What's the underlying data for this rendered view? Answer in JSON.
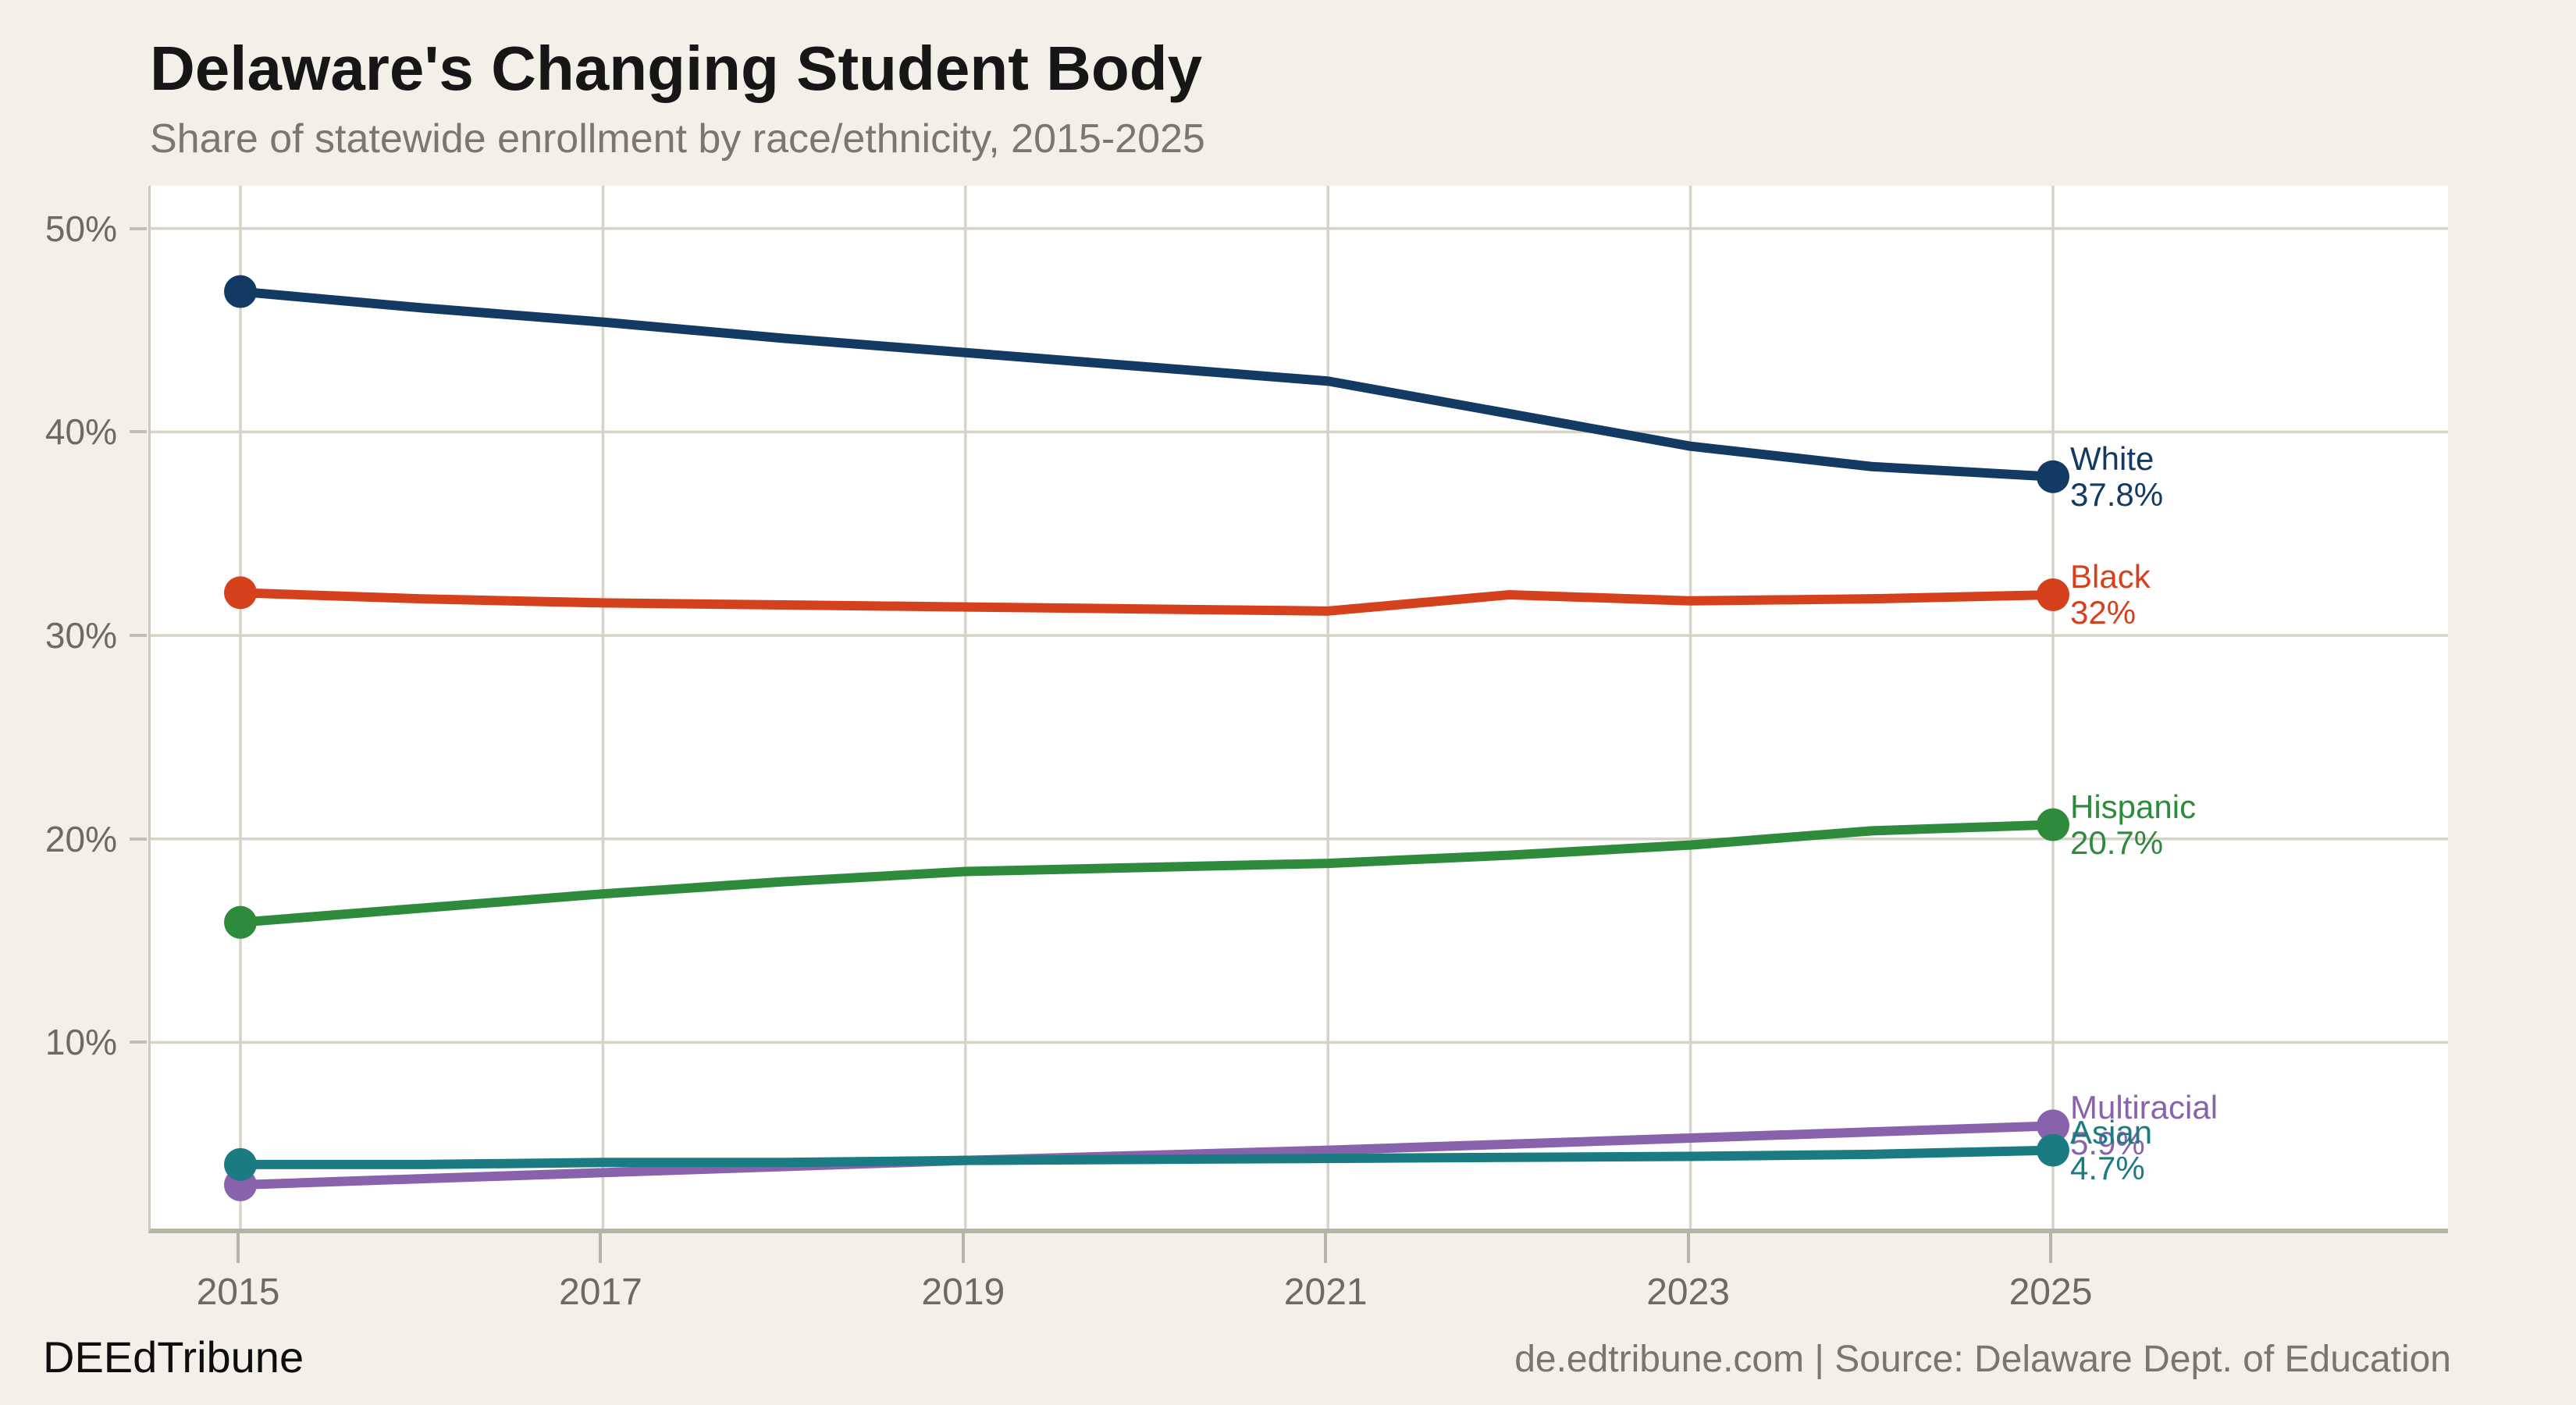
{
  "header": {
    "title": "Delaware's Changing Student Body",
    "subtitle": "Share of statewide enrollment by race/ethnicity, 2015-2025"
  },
  "footer": {
    "brand": "DEEdTribune",
    "source": "de.edtribune.com | Source: Delaware Dept. of Education"
  },
  "colors": {
    "background": "#f3f0e9",
    "plot_background": "#ffffff",
    "gridline": "#d8d2c7",
    "axis_line": "#b9b2a6",
    "tick_text": "#6f6a60"
  },
  "chart_data": {
    "type": "line",
    "title": "Delaware's Changing Student Body",
    "subtitle": "Share of statewide enrollment by race/ethnicity, 2015-2025",
    "xlabel": "",
    "ylabel": "",
    "grid": true,
    "legend_position": "end-of-line labels",
    "x": [
      2015,
      2016,
      2017,
      2018,
      2019,
      2020,
      2021,
      2022,
      2023,
      2024,
      2025
    ],
    "x_ticks": [
      {
        "v": 2015,
        "label": "2015"
      },
      {
        "v": 2017,
        "label": "2017"
      },
      {
        "v": 2019,
        "label": "2019"
      },
      {
        "v": 2021,
        "label": "2021"
      },
      {
        "v": 2023,
        "label": "2023"
      },
      {
        "v": 2025,
        "label": "2025"
      }
    ],
    "y_ticks": [
      {
        "v": 10,
        "label": "10%"
      },
      {
        "v": 20,
        "label": "20%"
      },
      {
        "v": 30,
        "label": "30%"
      },
      {
        "v": 40,
        "label": "40%"
      },
      {
        "v": 50,
        "label": "50%"
      }
    ],
    "xlim": [
      2014.5,
      2027.2
    ],
    "ylim": [
      0.85,
      52.1
    ],
    "series": [
      {
        "name": "White",
        "color": "#123a63",
        "end_label": "37.8%",
        "values": [
          46.9,
          46.1,
          45.4,
          44.6,
          43.9,
          43.2,
          42.5,
          40.9,
          39.3,
          38.3,
          37.8
        ]
      },
      {
        "name": "Black",
        "color": "#d5411d",
        "end_label": "32%",
        "values": [
          32.1,
          31.8,
          31.6,
          31.5,
          31.4,
          31.3,
          31.2,
          32.0,
          31.7,
          31.8,
          32.0
        ]
      },
      {
        "name": "Hispanic",
        "color": "#2e8b3b",
        "end_label": "20.7%",
        "values": [
          15.9,
          16.6,
          17.3,
          17.9,
          18.4,
          18.6,
          18.8,
          19.2,
          19.7,
          20.4,
          20.7
        ]
      },
      {
        "name": "Multiracial",
        "color": "#8862aa",
        "end_label": "5.9%",
        "values": [
          3.0,
          3.3,
          3.6,
          3.9,
          4.2,
          4.45,
          4.7,
          5.0,
          5.3,
          5.6,
          5.9
        ]
      },
      {
        "name": "Asian",
        "color": "#1b7b82",
        "end_label": "4.7%",
        "values": [
          4.0,
          4.0,
          4.1,
          4.1,
          4.2,
          4.25,
          4.3,
          4.35,
          4.4,
          4.5,
          4.7
        ]
      }
    ]
  }
}
